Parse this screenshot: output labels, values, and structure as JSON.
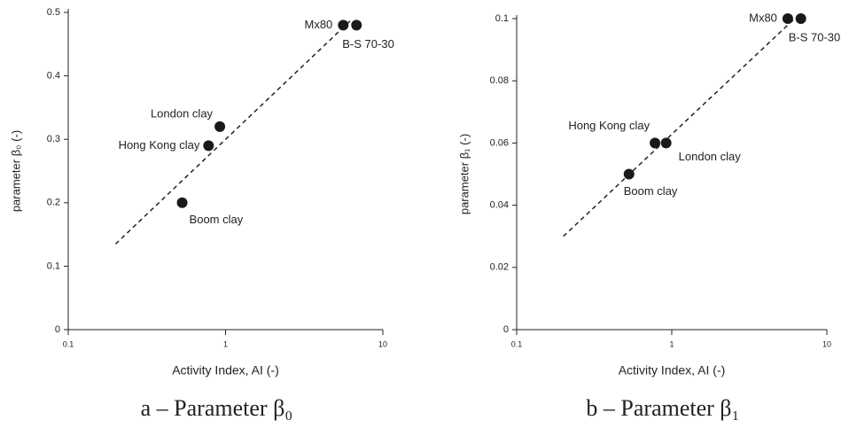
{
  "chart_data": [
    {
      "type": "scatter",
      "caption": "a – Parameter β₀",
      "xlabel": "Activity Index, AI (-)",
      "ylabel": "parameter β₀ (-)",
      "log_x": true,
      "xlim": [
        0.1,
        10
      ],
      "xticks": [
        0.1,
        1,
        10
      ],
      "ylim": [
        0,
        0.5
      ],
      "yticks": [
        0,
        0.1,
        0.2,
        0.3,
        0.4,
        0.5
      ],
      "labels": [
        "Boom clay",
        "Hong Kong clay",
        "London clay",
        "Mx80",
        "B-S 70-30"
      ],
      "x": [
        0.53,
        0.78,
        0.92,
        5.6,
        6.8
      ],
      "values": [
        0.2,
        0.29,
        0.32,
        0.48,
        0.48
      ],
      "color": "#1a1a1a",
      "trend_line": {
        "x": [
          0.2,
          6.4
        ],
        "values": [
          0.135,
          0.49
        ]
      }
    },
    {
      "type": "scatter",
      "caption": "b – Parameter β₁",
      "xlabel": "Activity Index, AI (-)",
      "ylabel": "parameter β₁ (-)",
      "log_x": true,
      "xlim": [
        0.1,
        10
      ],
      "xticks": [
        0.1,
        1,
        10
      ],
      "ylim": [
        0,
        0.1
      ],
      "yticks": [
        0,
        0.02,
        0.04,
        0.06,
        0.08,
        0.1
      ],
      "labels": [
        "Boom clay",
        "Hong Kong clay",
        "London clay",
        "Mx80",
        "B-S 70-30"
      ],
      "x": [
        0.53,
        0.78,
        0.92,
        5.6,
        6.8
      ],
      "values": [
        0.05,
        0.06,
        0.06,
        0.1,
        0.1
      ],
      "color": "#1a1a1a",
      "trend_line": {
        "x": [
          0.2,
          6.2
        ],
        "values": [
          0.03,
          0.1
        ]
      }
    }
  ]
}
